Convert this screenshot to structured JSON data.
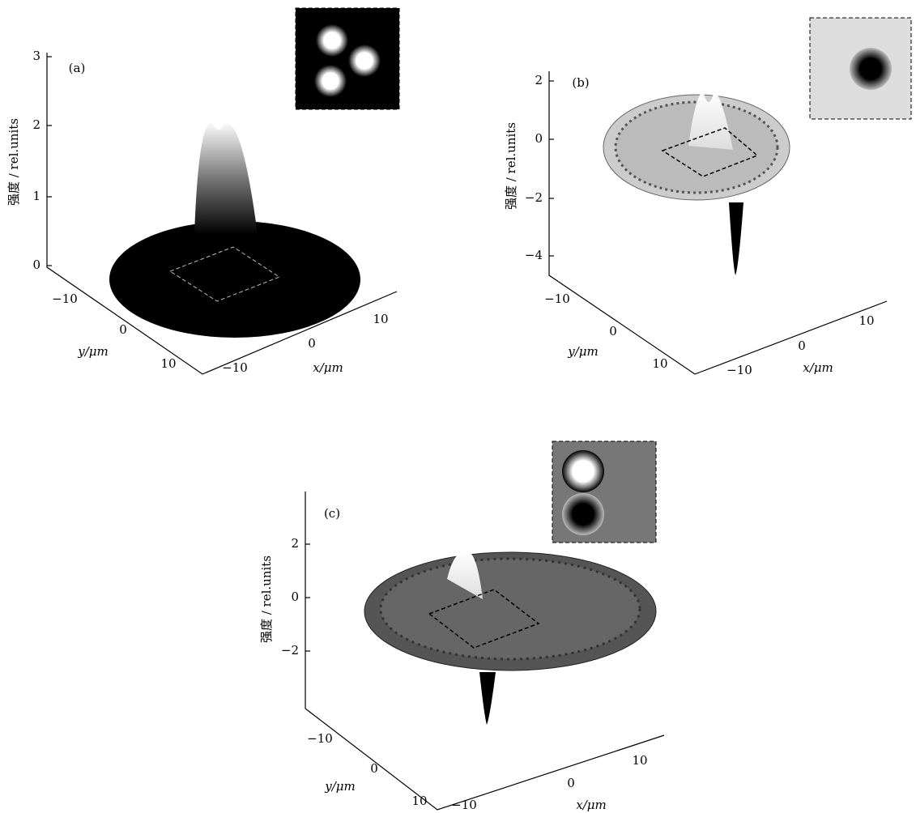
{
  "figure": {
    "panels": [
      {
        "label": "(a)",
        "zlabel": "强度 / rel.units",
        "ylabel": "y/μm",
        "xlabel": "x/μm",
        "zticks": [
          "0",
          "1",
          "2",
          "3"
        ],
        "yticks": [
          "−10",
          "0",
          "10"
        ],
        "xticks": [
          "−10",
          "0",
          "10"
        ]
      },
      {
        "label": "(b)",
        "zlabel": "强度 / rel.units",
        "ylabel": "y/μm",
        "xlabel": "x/μm",
        "zticks": [
          "2",
          "0",
          "−2",
          "−4"
        ],
        "yticks": [
          "−10",
          "0",
          "10"
        ],
        "xticks": [
          "−10",
          "0",
          "10"
        ]
      },
      {
        "label": "(c)",
        "zlabel": "强度 / rel.units",
        "ylabel": "y/μm",
        "xlabel": "x/μm",
        "zticks": [
          "2",
          "0",
          "−2"
        ],
        "yticks": [
          "−10",
          "0",
          "10"
        ],
        "xticks": [
          "−10",
          "0",
          "10"
        ]
      }
    ]
  }
}
